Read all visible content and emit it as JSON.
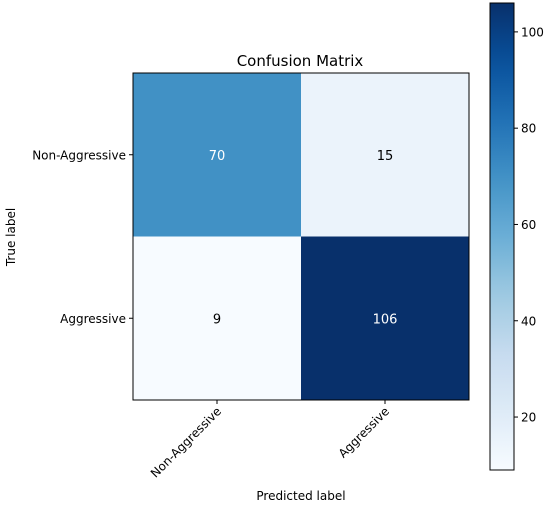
{
  "chart_data": {
    "type": "heatmap",
    "title": "Confusion Matrix",
    "xlabel": "Predicted label",
    "ylabel": "True label",
    "x_categories": [
      "Non-Aggressive",
      "Aggressive"
    ],
    "y_categories": [
      "Non-Aggressive",
      "Aggressive"
    ],
    "matrix": [
      [
        70,
        15
      ],
      [
        9,
        106
      ]
    ],
    "colormap": "Blues",
    "color_range": [
      9,
      106
    ],
    "colorbar": {
      "ticks": [
        20,
        40,
        60,
        80,
        100
      ],
      "tick_labels": [
        "20",
        "40",
        "60",
        "80",
        "100"
      ]
    },
    "colors": {
      "low": "#f7fbff",
      "high": "#08306b",
      "text_light": "#ffffff",
      "text_dark": "#000000"
    }
  }
}
